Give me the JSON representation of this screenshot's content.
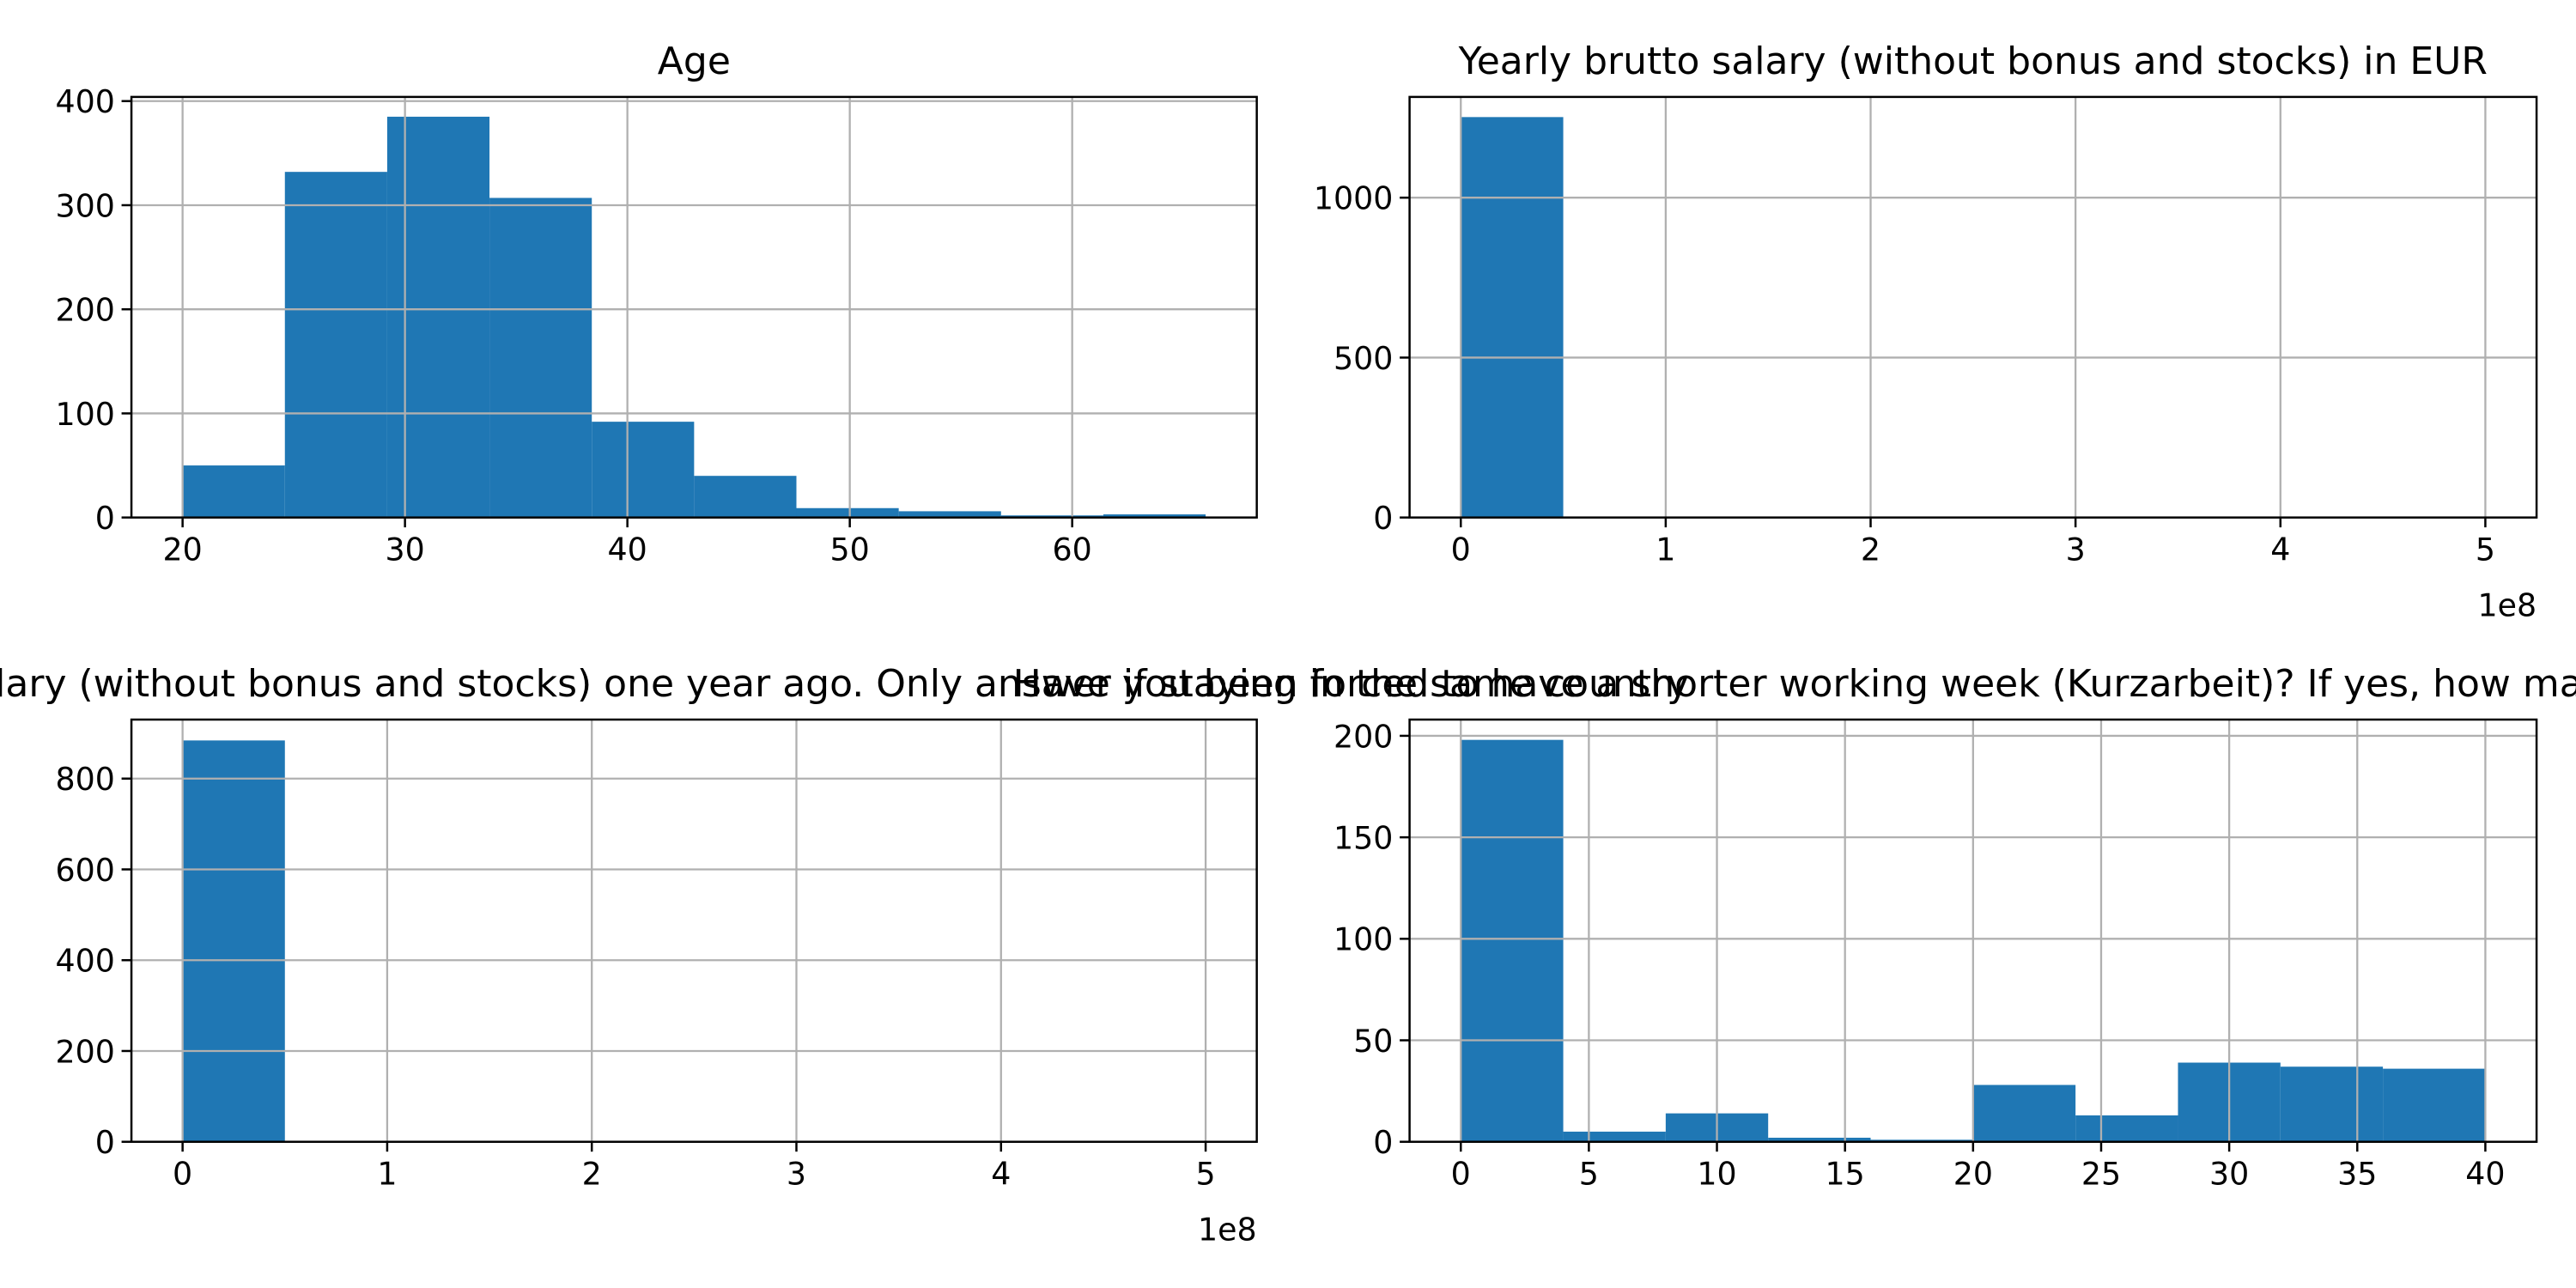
{
  "chart_data": [
    {
      "type": "histogram",
      "title": "Age",
      "color": "#1f77b4",
      "grid": true,
      "bins": [
        20,
        24.6,
        29.2,
        33.8,
        38.4,
        43,
        47.6,
        52.2,
        56.8,
        61.4,
        66
      ],
      "values": [
        50,
        332,
        385,
        307,
        92,
        40,
        9,
        6,
        2,
        3
      ],
      "xlim": [
        17.7,
        68.3
      ],
      "ylim": [
        0,
        404
      ],
      "xticks": [
        20,
        30,
        40,
        50,
        60
      ],
      "yticks": [
        0,
        100,
        200,
        300,
        400
      ]
    },
    {
      "type": "histogram",
      "title": "Yearly brutto salary (without bonus and stocks) in EUR",
      "color": "#1f77b4",
      "grid": true,
      "bins": [
        0,
        50000000,
        100000000,
        150000000,
        200000000,
        250000000,
        300000000,
        350000000,
        400000000,
        450000000,
        500000000
      ],
      "values": [
        1252,
        0,
        0,
        0,
        0,
        0,
        0,
        0,
        0,
        1
      ],
      "xlim": [
        -25000000,
        525000000
      ],
      "ylim": [
        0,
        1315
      ],
      "xticks": [
        0,
        {
          "value": 100000000,
          "label": "1"
        },
        {
          "value": 200000000,
          "label": "2"
        },
        {
          "value": 300000000,
          "label": "3"
        },
        {
          "value": 400000000,
          "label": "4"
        },
        {
          "value": 500000000,
          "label": "5"
        }
      ],
      "x_offset_label": "1e8",
      "yticks": [
        0,
        500,
        1000
      ]
    },
    {
      "type": "histogram",
      "title": "Yearly brutto salary (without bonus and stocks) one year ago. Only answer if staying in the same country",
      "color": "#1f77b4",
      "grid": true,
      "bins": [
        0,
        50000000,
        100000000,
        150000000,
        200000000,
        250000000,
        300000000,
        350000000,
        400000000,
        450000000,
        500000000
      ],
      "values": [
        884,
        0,
        0,
        0,
        0,
        0,
        0,
        0,
        0,
        1
      ],
      "xlim": [
        -25000000,
        525000000
      ],
      "ylim": [
        0,
        930
      ],
      "xticks": [
        0,
        {
          "value": 100000000,
          "label": "1"
        },
        {
          "value": 200000000,
          "label": "2"
        },
        {
          "value": 300000000,
          "label": "3"
        },
        {
          "value": 400000000,
          "label": "4"
        },
        {
          "value": 500000000,
          "label": "5"
        }
      ],
      "x_offset_label": "1e8",
      "yticks": [
        0,
        200,
        400,
        600,
        800
      ]
    },
    {
      "type": "histogram",
      "title": "Have you been forced to have a shorter working week (Kurzarbeit)? If yes, how many hours per week",
      "color": "#1f77b4",
      "grid": true,
      "bins": [
        0,
        4,
        8,
        12,
        16,
        20,
        24,
        28,
        32,
        36,
        40
      ],
      "values": [
        198,
        5,
        14,
        2,
        1,
        28,
        13,
        39,
        37,
        36
      ],
      "xlim": [
        -2,
        42
      ],
      "ylim": [
        0,
        208
      ],
      "xticks": [
        0,
        5,
        10,
        15,
        20,
        25,
        30,
        35,
        40
      ],
      "yticks": [
        0,
        50,
        100,
        150,
        200
      ]
    }
  ]
}
